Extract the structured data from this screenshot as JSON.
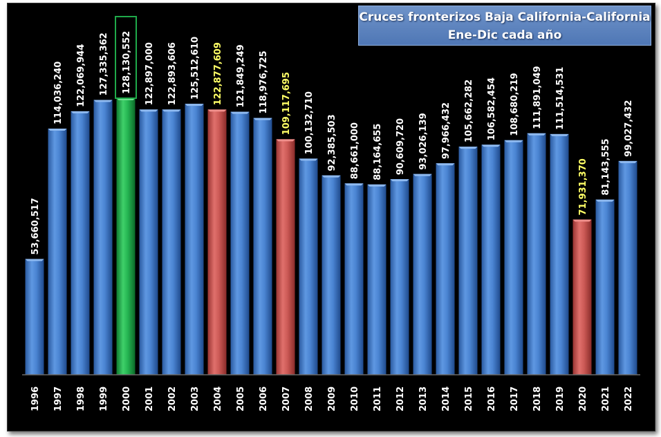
{
  "colors": {
    "background": "#000000",
    "default_bar": "#3d78c8",
    "max_bar": "#1faa4a",
    "highlight_bar": "#c9504c",
    "default_label": "#ffffff",
    "highlight_label": "#ffff66",
    "max_label_box": "#1faa4a"
  },
  "chart_data": {
    "type": "bar",
    "title": "Cruces fronterizos Baja California-California",
    "subtitle": "Ene-Dic cada año",
    "categories": [
      "1996",
      "1997",
      "1998",
      "1999",
      "2000",
      "2001",
      "2002",
      "2003",
      "2004",
      "2005",
      "2006",
      "2007",
      "2008",
      "2009",
      "2010",
      "2011",
      "2012",
      "2013",
      "2014",
      "2015",
      "2016",
      "2017",
      "2018",
      "2019",
      "2020",
      "2021",
      "2022"
    ],
    "values": [
      53660517,
      114036240,
      122069944,
      127335362,
      128130552,
      122897000,
      122893606,
      125512610,
      122877609,
      121849249,
      118976725,
      109117695,
      100132710,
      92385503,
      88661000,
      88164655,
      90609720,
      93026139,
      97966432,
      105662282,
      106582454,
      108680219,
      111891049,
      111514531,
      71931370,
      81143555,
      99027432
    ],
    "data_labels": [
      "53,660,517",
      "114,036,240",
      "122,069,944",
      "127,335,362",
      "128,130,552",
      "122,897,000",
      "122,893,606",
      "125,512,610",
      "122,877,609",
      "121,849,249",
      "118,976,725",
      "109,117,695",
      "100,132,710",
      "92,385,503",
      "88,661,000",
      "88,164,655",
      "90,609,720",
      "93,026,139",
      "97,966,432",
      "105,662,282",
      "106,582,454",
      "108,680,219",
      "111,891,049",
      "111,514,531",
      "71,931,370",
      "81,143,555",
      "99,027,432"
    ],
    "highlight_max": [
      "2000"
    ],
    "highlight_red": [
      "2004",
      "2007",
      "2020"
    ],
    "ylim": [
      0,
      130000000
    ],
    "grid": false,
    "legend": "none"
  }
}
